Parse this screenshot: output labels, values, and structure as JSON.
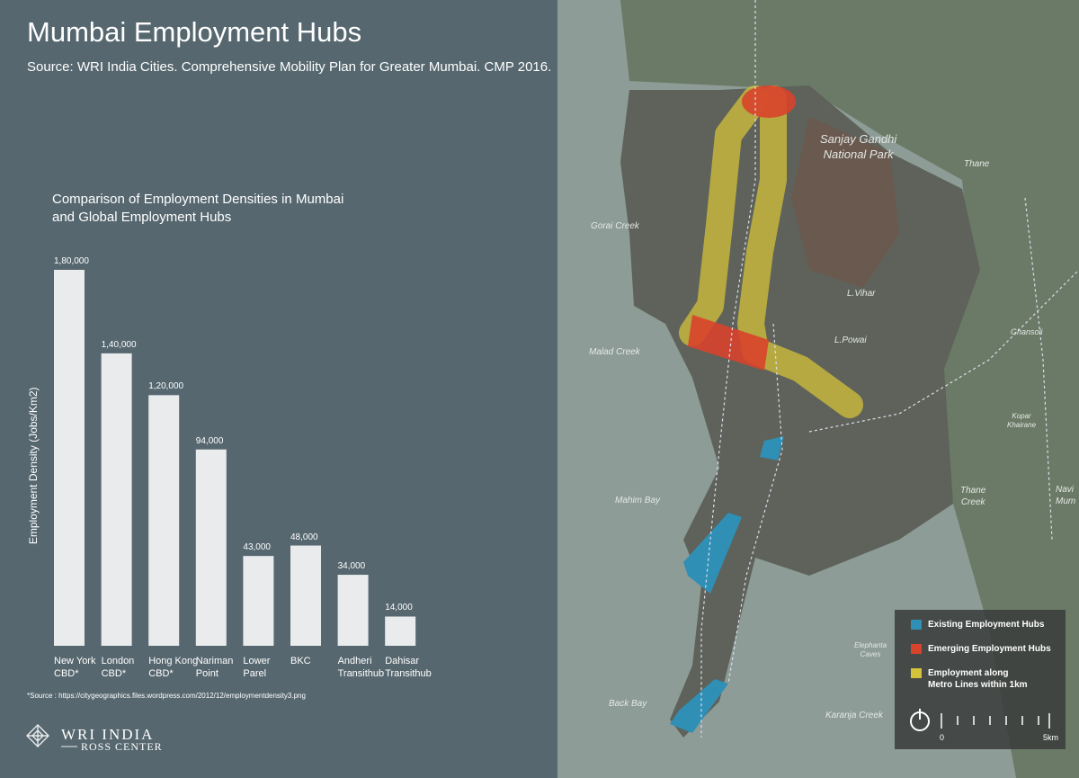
{
  "header": {
    "title": "Mumbai Employment Hubs",
    "subtitle": "Source: WRI India Cities. Comprehensive Mobility Plan for Greater Mumbai. CMP 2016."
  },
  "chart_data": {
    "type": "bar",
    "title": "Comparison of Employment Densities in Mumbai\nand Global Employment Hubs",
    "y_label": "Employment Density (Jobs/Km2)",
    "categories": [
      "New York\nCBD*",
      "London\nCBD*",
      "Hong Kong\nCBD*",
      "Nariman\nPoint",
      "Lower\nParel",
      "BKC",
      "Andheri\nTransithub",
      "Dahisar\nTransithub"
    ],
    "values": [
      180000,
      140000,
      120000,
      94000,
      43000,
      48000,
      34000,
      14000
    ],
    "value_labels": [
      "1,80,000",
      "1,40,000",
      "1,20,000",
      "94,000",
      "43,000",
      "48,000",
      "34,000",
      "14,000"
    ],
    "color": "#e9ebec",
    "ylim": [
      0,
      180000
    ],
    "note": "*Source : https://citygeographics.files.wordpress.com/2012/12/employmentdensity3.png"
  },
  "map": {
    "place_labels": [
      "Sanjay Gandhi\nNational Park",
      "Thane",
      "Gorai Creek",
      "L.Vihar",
      "L.Powai",
      "Malad Creek",
      "Ghansoli",
      "Kopar\nKhairane",
      "Mahim Bay",
      "Thane\nCreek",
      "Navi\nMum",
      "Elephanta\nCaves",
      "Back Bay",
      "Karanja Creek"
    ],
    "legend": [
      {
        "label": "Existing Employment Hubs",
        "color": "#2f8fb5"
      },
      {
        "label": "Emerging Employment Hubs",
        "color": "#d8432b"
      },
      {
        "label": "Employment along\nMetro Lines within 1km",
        "color": "#d4c23a"
      }
    ],
    "scale_labels": [
      "0",
      "5km"
    ]
  },
  "logo": {
    "name": "WRI INDIA",
    "subname": "ROSS CENTER"
  }
}
